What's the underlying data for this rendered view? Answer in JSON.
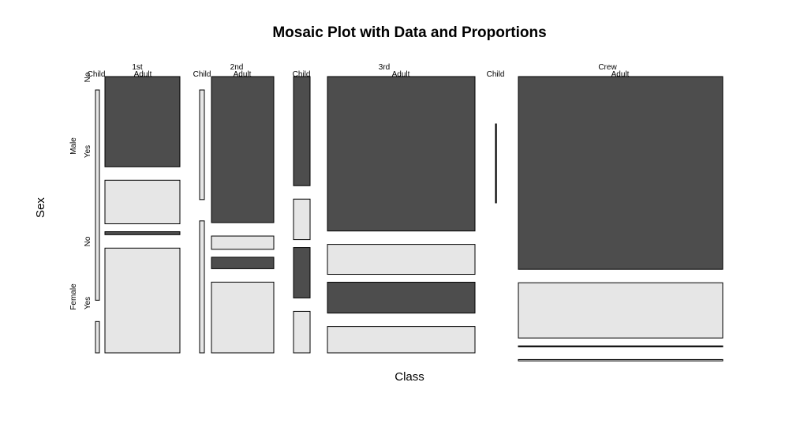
{
  "chart_data": {
    "type": "mosaic",
    "title": "Mosaic Plot with Data and Proportions",
    "xlabel": "Class",
    "ylabel": "Sex",
    "colors": {
      "no": "#4d4d4d",
      "yes": "#e6e6e6"
    },
    "classes": [
      "1st",
      "2nd",
      "3rd",
      "Crew"
    ],
    "ages": [
      "Child",
      "Adult"
    ],
    "sexes": [
      "Male",
      "Female"
    ],
    "survived": [
      "No",
      "Yes"
    ],
    "counts": {
      "1st": {
        "Child": {
          "Male": {
            "No": 0,
            "Yes": 5
          },
          "Female": {
            "No": 0,
            "Yes": 1
          }
        },
        "Adult": {
          "Male": {
            "No": 118,
            "Yes": 57
          },
          "Female": {
            "No": 4,
            "Yes": 140
          }
        }
      },
      "2nd": {
        "Child": {
          "Male": {
            "No": 0,
            "Yes": 11
          },
          "Female": {
            "No": 0,
            "Yes": 13
          }
        },
        "Adult": {
          "Male": {
            "No": 154,
            "Yes": 14
          },
          "Female": {
            "No": 13,
            "Yes": 80
          }
        }
      },
      "3rd": {
        "Child": {
          "Male": {
            "No": 35,
            "Yes": 13
          },
          "Female": {
            "No": 17,
            "Yes": 14
          }
        },
        "Adult": {
          "Male": {
            "No": 387,
            "Yes": 75
          },
          "Female": {
            "No": 89,
            "Yes": 76
          }
        }
      },
      "Crew": {
        "Child": {
          "Male": {
            "No": 0,
            "Yes": 0
          },
          "Female": {
            "No": 0,
            "Yes": 0
          }
        },
        "Adult": {
          "Male": {
            "No": 670,
            "Yes": 192
          },
          "Female": {
            "No": 3,
            "Yes": 20
          }
        }
      }
    }
  }
}
